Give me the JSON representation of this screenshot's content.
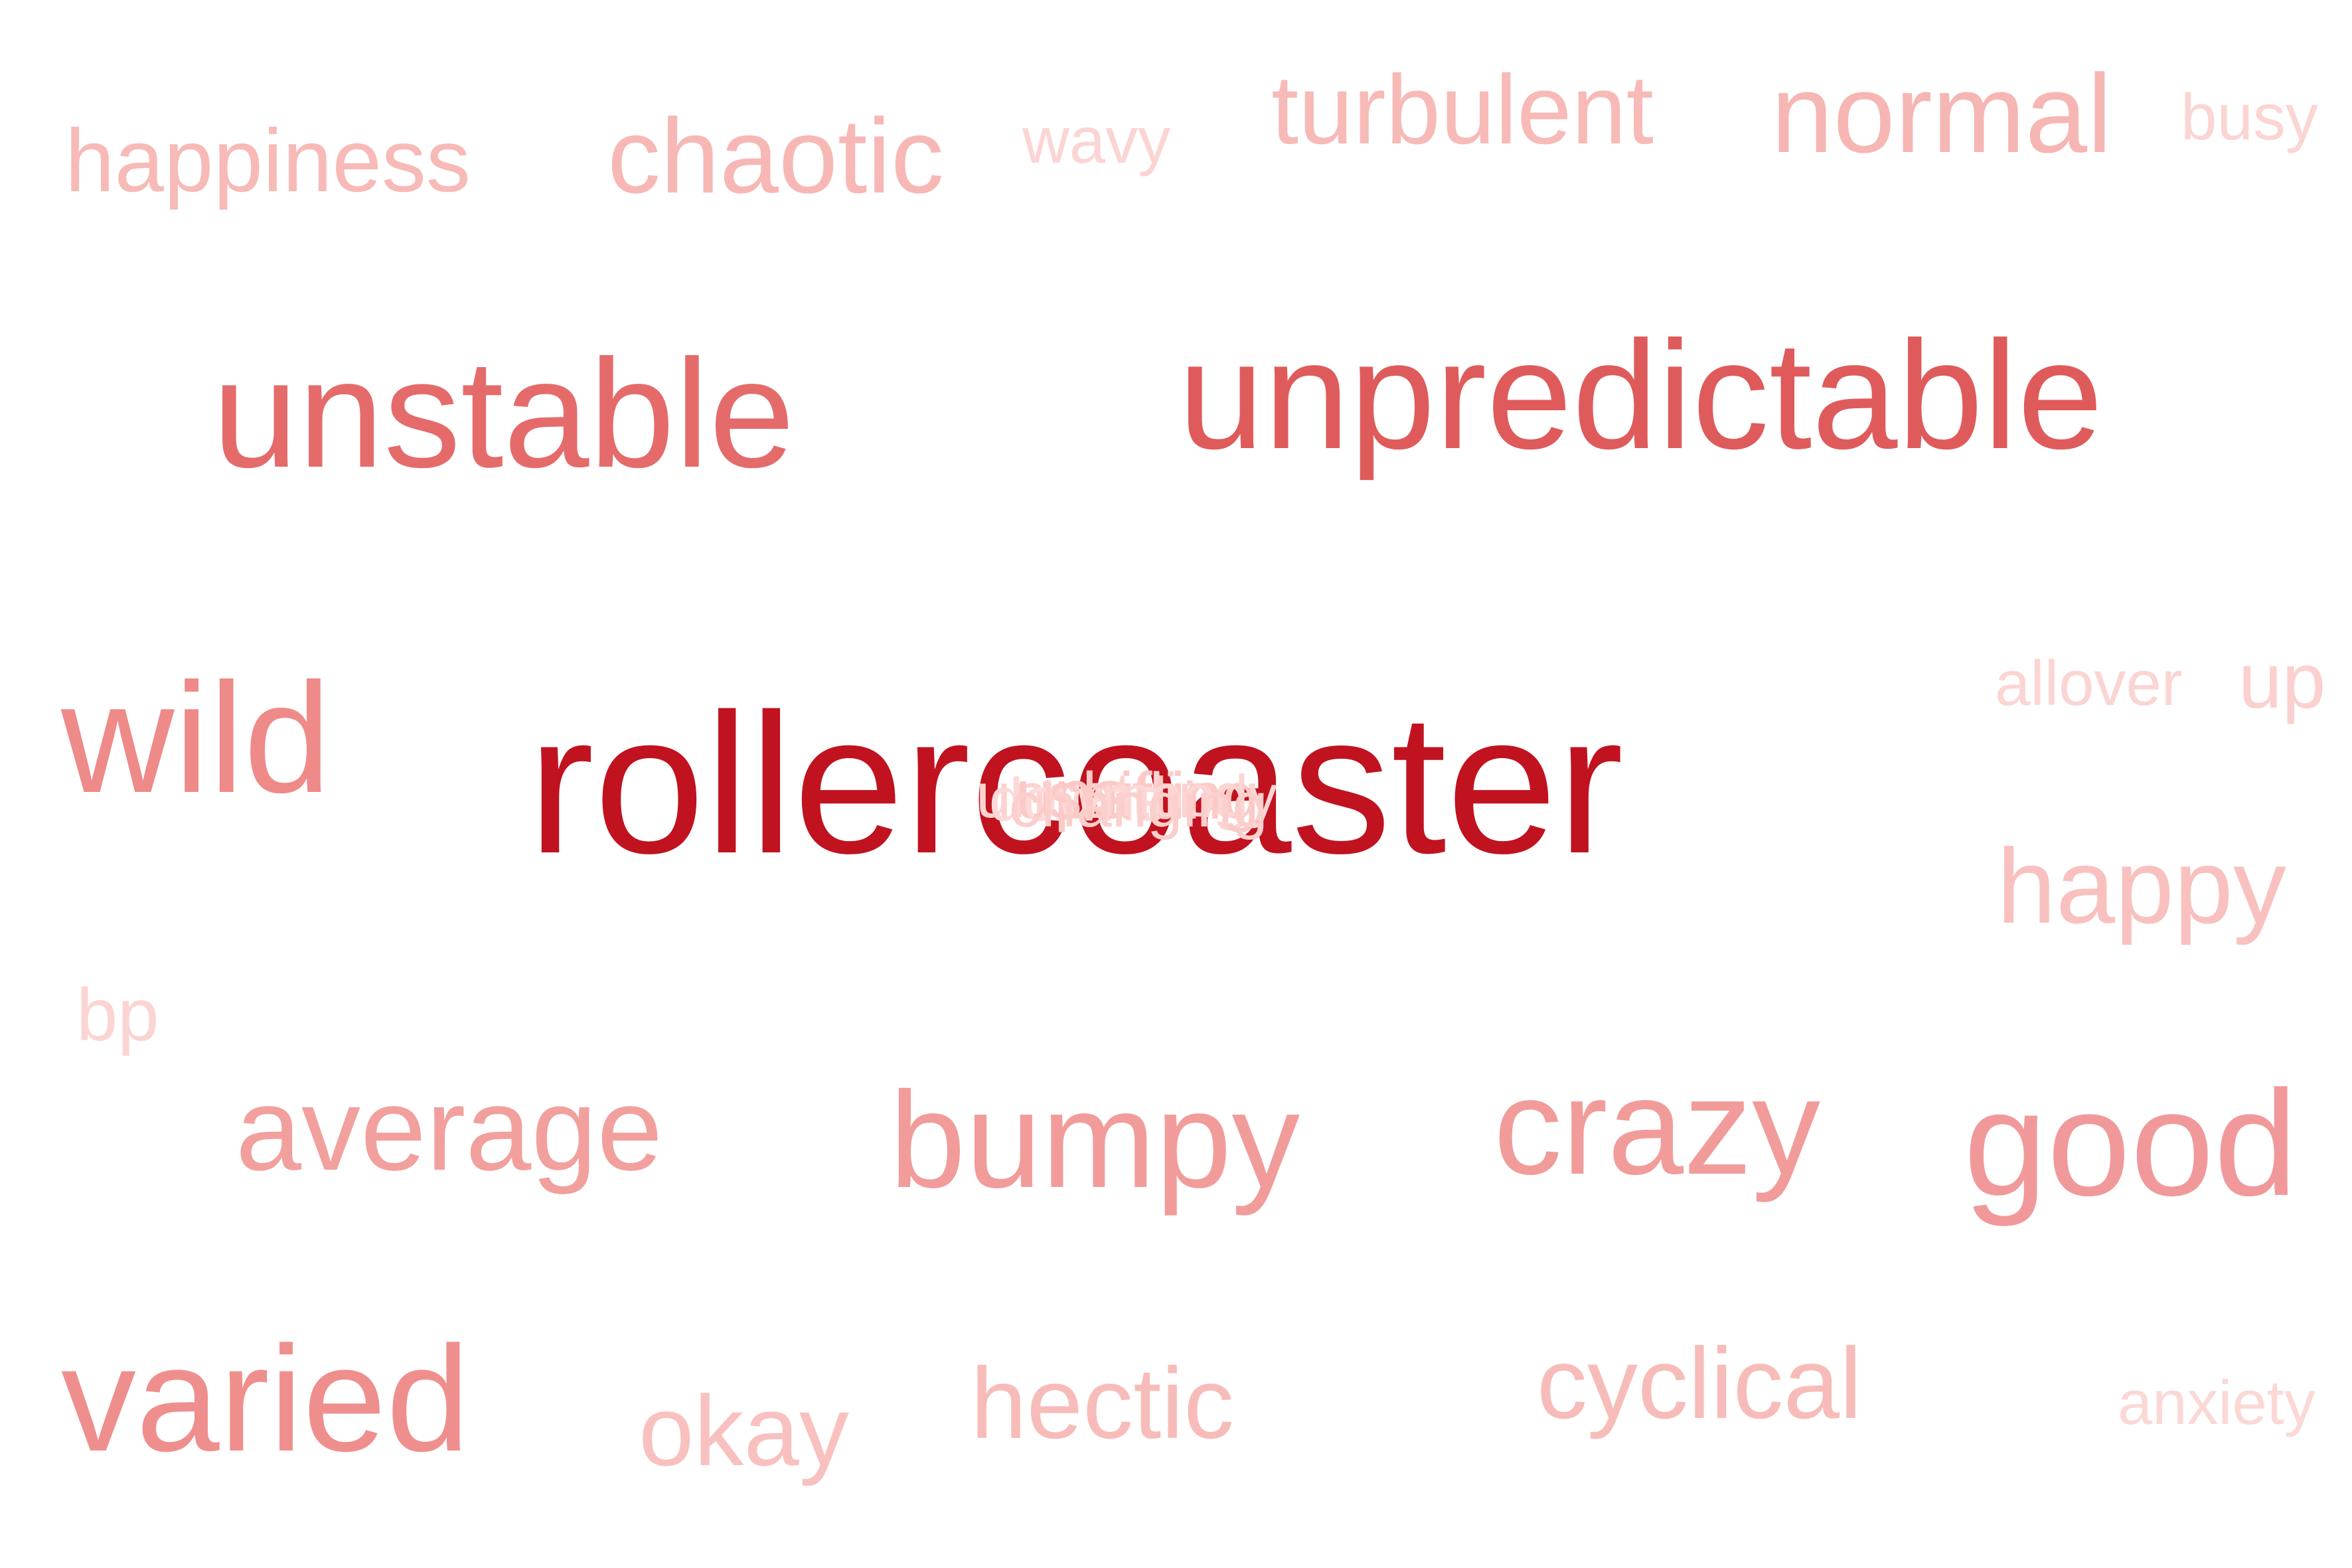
{
  "word_cloud": {
    "words": [
      {
        "text": "rollercoaster",
        "weight": 1.0,
        "color": "#c1121f"
      },
      {
        "text": "unpredictable",
        "weight": 0.68,
        "color": "#df5b5b"
      },
      {
        "text": "unstable",
        "weight": 0.62,
        "color": "#e56b6b"
      },
      {
        "text": "wild",
        "weight": 0.52,
        "color": "#ee8a88"
      },
      {
        "text": "varied",
        "weight": 0.48,
        "color": "#ef8f8d"
      },
      {
        "text": "good",
        "weight": 0.47,
        "color": "#f1999a"
      },
      {
        "text": "crazy",
        "weight": 0.44,
        "color": "#f19c9a"
      },
      {
        "text": "bumpy",
        "weight": 0.44,
        "color": "#f19c9a"
      },
      {
        "text": "average",
        "weight": 0.4,
        "color": "#f2a09d"
      },
      {
        "text": "normal",
        "weight": 0.33,
        "color": "#f6b6b3"
      },
      {
        "text": "happy",
        "weight": 0.32,
        "color": "#f8c1bf"
      },
      {
        "text": "chaotic",
        "weight": 0.33,
        "color": "#f7b8b5"
      },
      {
        "text": "turbulent",
        "weight": 0.31,
        "color": "#f7bab7"
      },
      {
        "text": "hectic",
        "weight": 0.31,
        "color": "#f7bcb9"
      },
      {
        "text": "cyclical",
        "weight": 0.3,
        "color": "#f7bcb9"
      },
      {
        "text": "okay",
        "weight": 0.31,
        "color": "#f8c1bf"
      },
      {
        "text": "happiness",
        "weight": 0.27,
        "color": "#f7bab7"
      },
      {
        "text": "up",
        "weight": 0.23,
        "color": "#fbd0ce"
      },
      {
        "text": "bp",
        "weight": 0.21,
        "color": "#fbd5d3"
      },
      {
        "text": "busy",
        "weight": 0.19,
        "color": "#fbd5d3"
      },
      {
        "text": "wavy",
        "weight": 0.19,
        "color": "#fbd5d3"
      },
      {
        "text": "allover",
        "weight": 0.19,
        "color": "#fbd5d3"
      },
      {
        "text": "anxiety",
        "weight": 0.18,
        "color": "#fbd8d6"
      }
    ],
    "overlapping_words": [
      {
        "text": "unsettling",
        "color": "#fcd3d1"
      },
      {
        "text": "ups",
        "color": "#fbc9c6"
      },
      {
        "text": "downs",
        "color": "#fdd9d7"
      },
      {
        "text": "shifting",
        "color": "#fbcac7"
      },
      {
        "text": "moody",
        "color": "#fcd6d4"
      },
      {
        "text": "changing",
        "color": "#fbcfcc"
      }
    ]
  }
}
